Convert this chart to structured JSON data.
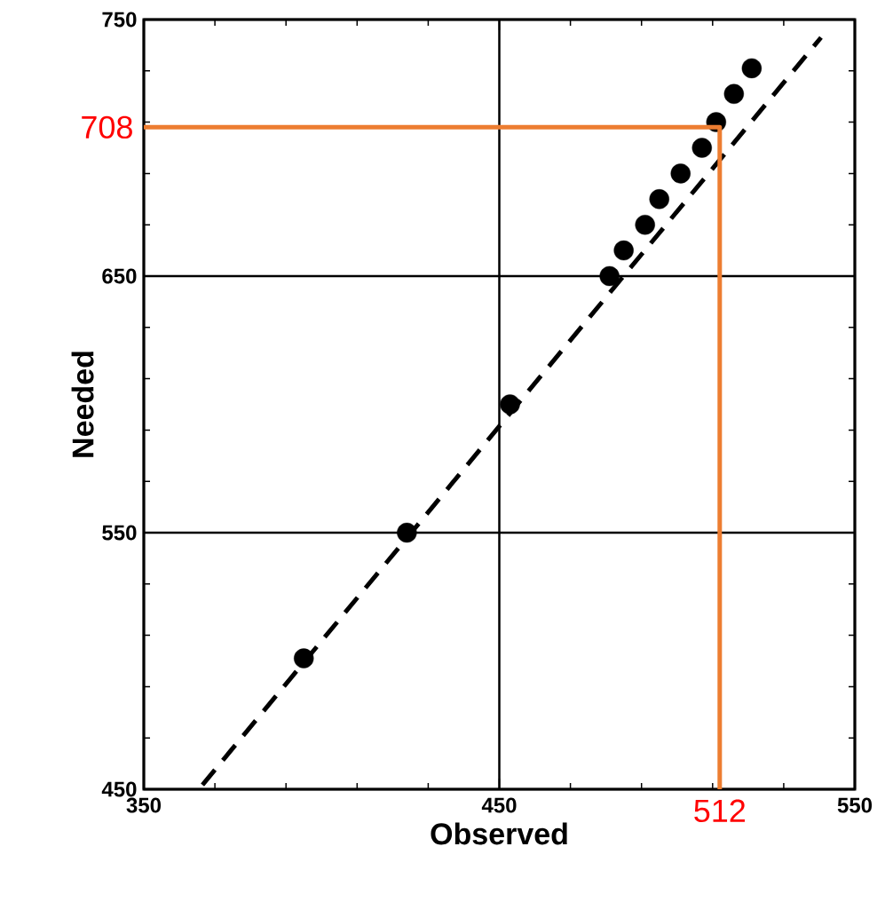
{
  "chart_data": {
    "type": "scatter",
    "xlabel": "Observed",
    "ylabel": "Needed",
    "xlim": [
      350,
      550
    ],
    "ylim": [
      450,
      750
    ],
    "xticks": [
      350,
      450,
      550
    ],
    "yticks": [
      450,
      550,
      650,
      750
    ],
    "grid": true,
    "marker": "circle",
    "series": [
      {
        "type": "scatter",
        "color": "#000000",
        "x": [
          395,
          424,
          453,
          481,
          485,
          491,
          495,
          501,
          507,
          511,
          516,
          521
        ],
        "values": [
          501,
          550,
          600,
          650,
          660,
          670,
          680,
          690,
          700,
          710,
          721,
          731
        ]
      },
      {
        "type": "line",
        "color": "#000000",
        "line_style": "dashed",
        "marker": "none",
        "x": [
          366.5,
          540.5
        ],
        "values": [
          451.7,
          743
        ]
      },
      {
        "type": "line",
        "color": "#ed7d31",
        "line_style": "solid",
        "marker": "none",
        "x": [
          350,
          512,
          512
        ],
        "values": [
          708,
          708,
          450
        ]
      }
    ],
    "annotations": [
      {
        "text": "708",
        "x": 350,
        "y": 708
      },
      {
        "text": "512",
        "x": 512,
        "y": 450
      }
    ]
  }
}
